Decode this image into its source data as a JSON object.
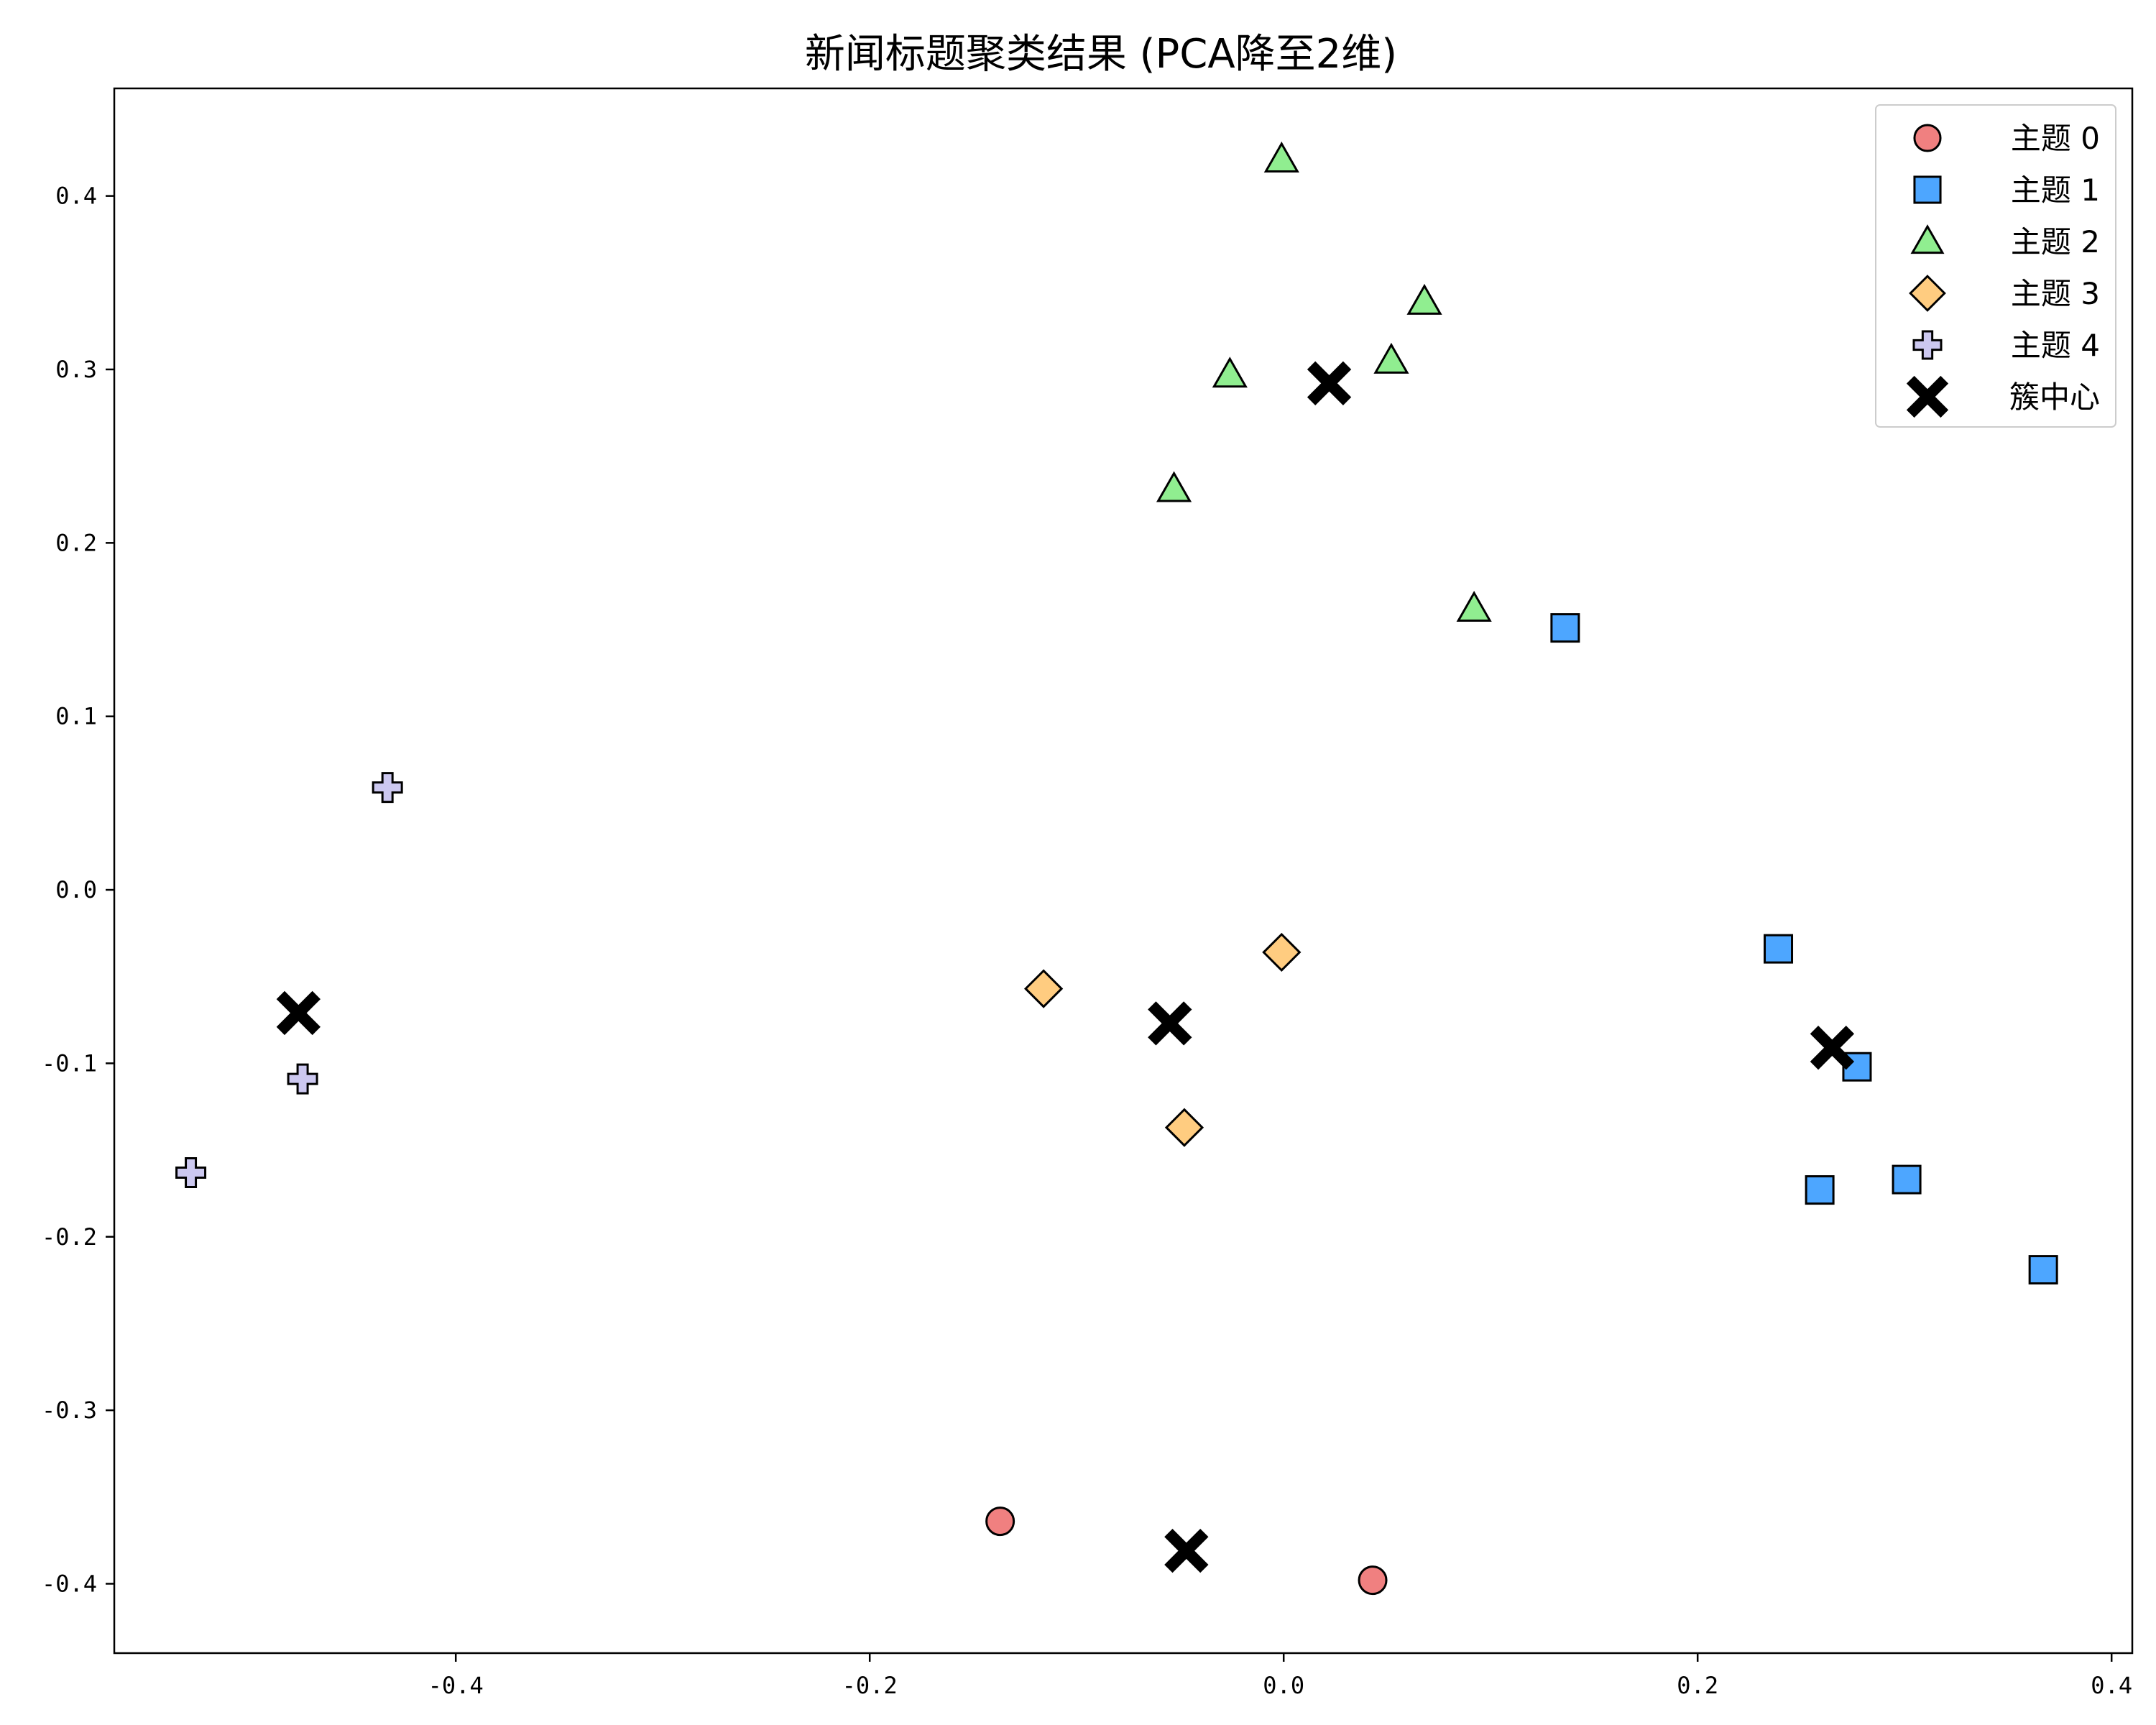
{
  "chart_data": {
    "type": "scatter",
    "title": "新闻标题聚类结果 (PCA降至2维)",
    "xlabel": "",
    "ylabel": "",
    "xlim": [
      -0.565,
      0.41
    ],
    "ylim": [
      -0.44,
      0.462
    ],
    "xticks": [
      -0.4,
      -0.2,
      0.0,
      0.2,
      0.4
    ],
    "yticks": [
      0.4,
      0.3,
      0.2,
      0.1,
      0.0,
      -0.1,
      -0.2,
      -0.3,
      -0.4
    ],
    "xtick_labels": [
      "-0.4",
      "-0.2",
      "0.0",
      "0.2",
      "0.4"
    ],
    "ytick_labels": [
      "0.4",
      "0.3",
      "0.2",
      "0.1",
      "0.0",
      "-0.1",
      "-0.2",
      "-0.3",
      "-0.4"
    ],
    "grid": false,
    "legend_position": "top-right",
    "series": [
      {
        "name": "主题 0",
        "marker": "circle",
        "color": "#f08080",
        "points": [
          [
            -0.137,
            -0.364
          ],
          [
            0.043,
            -0.398
          ]
        ]
      },
      {
        "name": "主题 1",
        "marker": "square",
        "color": "#4da6ff",
        "points": [
          [
            0.136,
            0.151
          ],
          [
            0.239,
            -0.034
          ],
          [
            0.277,
            -0.102
          ],
          [
            0.259,
            -0.173
          ],
          [
            0.301,
            -0.167
          ],
          [
            0.367,
            -0.219
          ]
        ]
      },
      {
        "name": "主题 2",
        "marker": "triangle",
        "color": "#90ee90",
        "points": [
          [
            -0.001,
            0.421
          ],
          [
            0.068,
            0.339
          ],
          [
            -0.026,
            0.297
          ],
          [
            0.052,
            0.305
          ],
          [
            -0.053,
            0.231
          ],
          [
            0.092,
            0.162
          ]
        ]
      },
      {
        "name": "主题 3",
        "marker": "diamond",
        "color": "#ffcc80",
        "points": [
          [
            -0.116,
            -0.057
          ],
          [
            -0.001,
            -0.036
          ],
          [
            -0.048,
            -0.137
          ]
        ]
      },
      {
        "name": "主题 4",
        "marker": "plus",
        "color": "#ccc8f0",
        "points": [
          [
            -0.433,
            0.059
          ],
          [
            -0.474,
            -0.109
          ],
          [
            -0.528,
            -0.163
          ]
        ]
      },
      {
        "name": "簇中心",
        "marker": "x",
        "color": "#000000",
        "points": [
          [
            -0.476,
            -0.071
          ],
          [
            -0.055,
            -0.077
          ],
          [
            0.022,
            0.292
          ],
          [
            0.265,
            -0.091
          ],
          [
            -0.047,
            -0.381
          ]
        ]
      }
    ]
  }
}
